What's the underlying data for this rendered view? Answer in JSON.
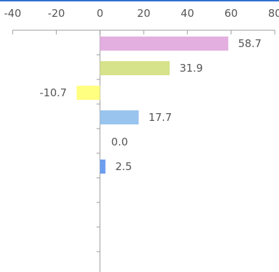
{
  "chart_data": {
    "type": "bar",
    "orientation": "horizontal",
    "x_ticks": [
      -40,
      -20,
      0,
      20,
      40,
      60,
      80
    ],
    "xlim": [
      -40,
      80
    ],
    "values": [
      58.7,
      31.9,
      -10.7,
      17.7,
      0.0,
      2.5
    ],
    "value_labels": [
      "58.7",
      "31.9",
      "-10.7",
      "17.7",
      "0.0",
      "2.5"
    ],
    "bar_colors": [
      "#e3aee0",
      "#d6e38a",
      "#ffff80",
      "#99c4ee",
      "#cccccc",
      "#6d9ef0"
    ],
    "empty_categories": 4,
    "grid": false,
    "axis_color": "#999999",
    "accent_color": "#2f6fd1"
  }
}
